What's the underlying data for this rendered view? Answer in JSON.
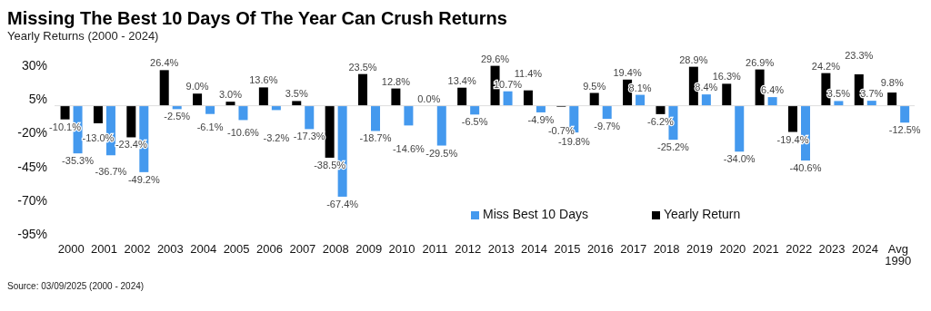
{
  "chart_data": {
    "type": "bar",
    "title": "Missing The Best 10 Days Of The Year Can Crush Returns",
    "subtitle": "Yearly Returns (2000 - 2024)",
    "categories": [
      "2000",
      "2001",
      "2002",
      "2003",
      "2004",
      "2005",
      "2006",
      "2007",
      "2008",
      "2009",
      "2010",
      "2011",
      "2012",
      "2013",
      "2014",
      "2015",
      "2016",
      "2017",
      "2018",
      "2019",
      "2020",
      "2021",
      "2022",
      "2023",
      "2024",
      "Avg 1990"
    ],
    "series": [
      {
        "name": "Yearly Return",
        "color": "#000000",
        "values": [
          -10.1,
          -13.0,
          -23.4,
          26.4,
          9.0,
          3.0,
          13.6,
          3.5,
          -38.5,
          23.5,
          12.8,
          0.0,
          13.4,
          29.6,
          11.4,
          -0.7,
          9.5,
          19.4,
          -6.2,
          28.9,
          16.3,
          26.9,
          -19.4,
          24.2,
          23.3,
          9.8
        ],
        "value_labels": [
          "-10.1%",
          "-13.0%",
          "-23.4%",
          "26.4%",
          "9.0%",
          "3.0%",
          "13.6%",
          "3.5%",
          "-38.5%",
          "23.5%",
          "12.8%",
          "0.0%",
          "13.4%",
          "29.6%",
          "11.4%",
          "-0.7%",
          "9.5%",
          "19.4%",
          "-6.2%",
          "28.9%",
          "16.3%",
          "26.9%",
          "-19.4%",
          "24.2%",
          "23.3%",
          "9.8%"
        ]
      },
      {
        "name": "Miss Best 10 Days",
        "color": "#4499ee",
        "values": [
          -35.3,
          -36.7,
          -49.2,
          -2.5,
          -6.1,
          -10.6,
          -3.2,
          -17.3,
          -67.4,
          -18.7,
          -14.6,
          -29.5,
          -6.5,
          10.7,
          -4.9,
          -19.8,
          -9.7,
          8.1,
          -25.2,
          8.4,
          -34.0,
          6.4,
          -40.6,
          3.5,
          3.7,
          -12.5
        ],
        "value_labels": [
          "-35.3%",
          "-36.7%",
          "-49.2%",
          "-2.5%",
          "-6.1%",
          "-10.6%",
          "-3.2%",
          "-17.3%",
          "-67.4%",
          "-18.7%",
          "-14.6%",
          "-29.5%",
          "-6.5%",
          "10.7%",
          "-4.9%",
          "-19.8%",
          "-9.7%",
          "8.1%",
          "-25.2%",
          "8.4%",
          "-34.0%",
          "6.4%",
          "-40.6%",
          "3.5%",
          "3.7%",
          "-12.5%"
        ]
      }
    ],
    "ylim": [
      -95,
      30
    ],
    "yticks": [
      {
        "value": 30,
        "label": "30%"
      },
      {
        "value": 5,
        "label": "5%"
      },
      {
        "value": -20,
        "label": "-20%"
      },
      {
        "value": -45,
        "label": "-45%"
      },
      {
        "value": -70,
        "label": "-70%"
      },
      {
        "value": -95,
        "label": "-95%"
      }
    ],
    "grid": false,
    "legend": "bottom right",
    "annotations": [
      "Source: 03/09/2025 (2000 - 2024)"
    ]
  }
}
